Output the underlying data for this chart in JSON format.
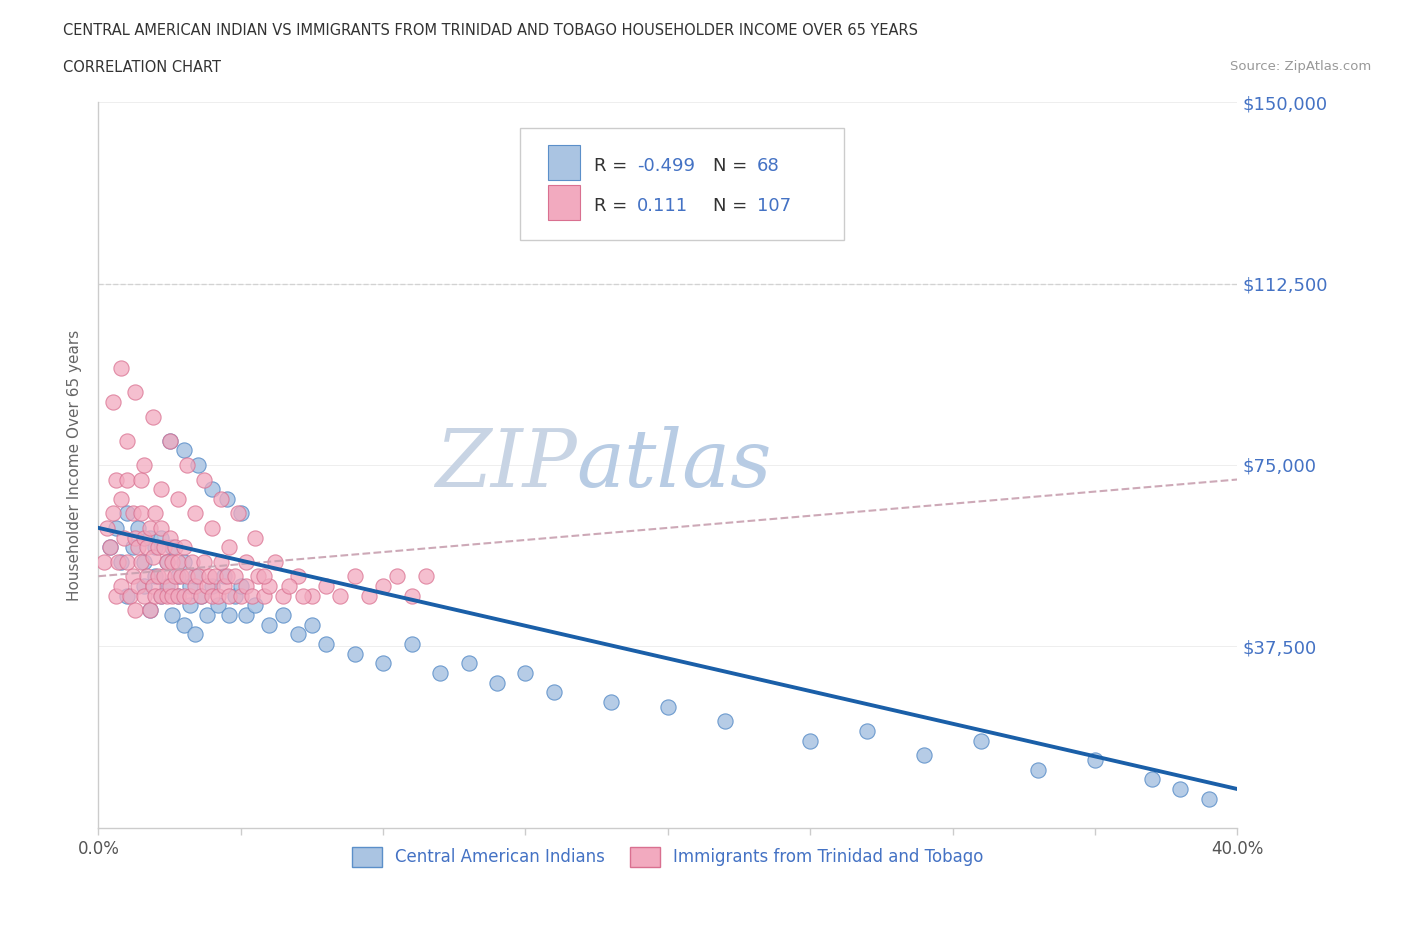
{
  "title_line1": "CENTRAL AMERICAN INDIAN VS IMMIGRANTS FROM TRINIDAD AND TOBAGO HOUSEHOLDER INCOME OVER 65 YEARS",
  "title_line2": "CORRELATION CHART",
  "source_text": "Source: ZipAtlas.com",
  "ylabel": "Householder Income Over 65 years",
  "xlim": [
    0.0,
    0.4
  ],
  "ylim": [
    0,
    150000
  ],
  "yticks": [
    0,
    37500,
    75000,
    112500,
    150000
  ],
  "ytick_labels": [
    "",
    "$37,500",
    "$75,000",
    "$112,500",
    "$150,000"
  ],
  "xticks": [
    0.0,
    0.05,
    0.1,
    0.15,
    0.2,
    0.25,
    0.3,
    0.35,
    0.4
  ],
  "xtick_labels": [
    "0.0%",
    "",
    "",
    "",
    "",
    "",
    "",
    "",
    "40.0%"
  ],
  "color_blue_fill": "#aac4e2",
  "color_blue_edge": "#5b8fc9",
  "color_pink_fill": "#f2aabf",
  "color_pink_edge": "#d97090",
  "color_trend_blue": "#1a5fa8",
  "color_trend_pink": "#cc4466",
  "color_dashed": "#c8a0b0",
  "color_hline": "#cccccc",
  "color_text_blue": "#4472c4",
  "color_title": "#333333",
  "color_source": "#999999",
  "color_ylabel": "#666666",
  "watermark_color": "#dce6f0",
  "background_color": "#ffffff",
  "blue_scatter_x": [
    0.004,
    0.006,
    0.008,
    0.01,
    0.01,
    0.012,
    0.014,
    0.016,
    0.016,
    0.018,
    0.018,
    0.02,
    0.02,
    0.022,
    0.022,
    0.024,
    0.024,
    0.026,
    0.026,
    0.028,
    0.028,
    0.03,
    0.03,
    0.032,
    0.032,
    0.034,
    0.034,
    0.036,
    0.038,
    0.04,
    0.042,
    0.044,
    0.046,
    0.048,
    0.05,
    0.052,
    0.055,
    0.06,
    0.065,
    0.07,
    0.075,
    0.08,
    0.09,
    0.1,
    0.11,
    0.12,
    0.13,
    0.14,
    0.15,
    0.16,
    0.18,
    0.2,
    0.22,
    0.25,
    0.27,
    0.29,
    0.31,
    0.33,
    0.35,
    0.37,
    0.38,
    0.39,
    0.025,
    0.03,
    0.035,
    0.04,
    0.045,
    0.05
  ],
  "blue_scatter_y": [
    58000,
    62000,
    55000,
    65000,
    48000,
    58000,
    62000,
    55000,
    50000,
    60000,
    45000,
    58000,
    52000,
    60000,
    48000,
    55000,
    50000,
    58000,
    44000,
    52000,
    48000,
    55000,
    42000,
    50000,
    46000,
    52000,
    40000,
    48000,
    44000,
    50000,
    46000,
    52000,
    44000,
    48000,
    50000,
    44000,
    46000,
    42000,
    44000,
    40000,
    42000,
    38000,
    36000,
    34000,
    38000,
    32000,
    34000,
    30000,
    32000,
    28000,
    26000,
    25000,
    22000,
    18000,
    20000,
    15000,
    18000,
    12000,
    14000,
    10000,
    8000,
    6000,
    80000,
    78000,
    75000,
    70000,
    68000,
    65000
  ],
  "pink_scatter_x": [
    0.002,
    0.003,
    0.004,
    0.005,
    0.006,
    0.006,
    0.007,
    0.008,
    0.008,
    0.009,
    0.01,
    0.01,
    0.011,
    0.012,
    0.012,
    0.013,
    0.013,
    0.014,
    0.014,
    0.015,
    0.015,
    0.015,
    0.016,
    0.016,
    0.017,
    0.017,
    0.018,
    0.018,
    0.019,
    0.019,
    0.02,
    0.02,
    0.021,
    0.021,
    0.022,
    0.022,
    0.023,
    0.023,
    0.024,
    0.024,
    0.025,
    0.025,
    0.026,
    0.026,
    0.027,
    0.027,
    0.028,
    0.028,
    0.029,
    0.03,
    0.03,
    0.031,
    0.032,
    0.033,
    0.034,
    0.035,
    0.036,
    0.037,
    0.038,
    0.039,
    0.04,
    0.041,
    0.042,
    0.043,
    0.044,
    0.045,
    0.046,
    0.048,
    0.05,
    0.052,
    0.054,
    0.056,
    0.058,
    0.06,
    0.065,
    0.07,
    0.075,
    0.08,
    0.085,
    0.09,
    0.095,
    0.1,
    0.105,
    0.11,
    0.115,
    0.005,
    0.008,
    0.01,
    0.013,
    0.016,
    0.019,
    0.022,
    0.025,
    0.028,
    0.031,
    0.034,
    0.037,
    0.04,
    0.043,
    0.046,
    0.049,
    0.052,
    0.055,
    0.058,
    0.062,
    0.067,
    0.072
  ],
  "pink_scatter_y": [
    55000,
    62000,
    58000,
    65000,
    48000,
    72000,
    55000,
    68000,
    50000,
    60000,
    55000,
    72000,
    48000,
    65000,
    52000,
    60000,
    45000,
    58000,
    50000,
    65000,
    55000,
    72000,
    48000,
    60000,
    52000,
    58000,
    45000,
    62000,
    50000,
    56000,
    48000,
    65000,
    52000,
    58000,
    48000,
    62000,
    52000,
    58000,
    48000,
    55000,
    50000,
    60000,
    48000,
    55000,
    52000,
    58000,
    48000,
    55000,
    52000,
    48000,
    58000,
    52000,
    48000,
    55000,
    50000,
    52000,
    48000,
    55000,
    50000,
    52000,
    48000,
    52000,
    48000,
    55000,
    50000,
    52000,
    48000,
    52000,
    48000,
    50000,
    48000,
    52000,
    48000,
    50000,
    48000,
    52000,
    48000,
    50000,
    48000,
    52000,
    48000,
    50000,
    52000,
    48000,
    52000,
    88000,
    95000,
    80000,
    90000,
    75000,
    85000,
    70000,
    80000,
    68000,
    75000,
    65000,
    72000,
    62000,
    68000,
    58000,
    65000,
    55000,
    60000,
    52000,
    55000,
    50000,
    48000
  ],
  "blue_trend_x": [
    0.0,
    0.4
  ],
  "blue_trend_y": [
    62000,
    8000
  ],
  "pink_trend_x": [
    0.0,
    0.4
  ],
  "pink_trend_y": [
    52000,
    72000
  ],
  "dashed_hline_y": 112500
}
